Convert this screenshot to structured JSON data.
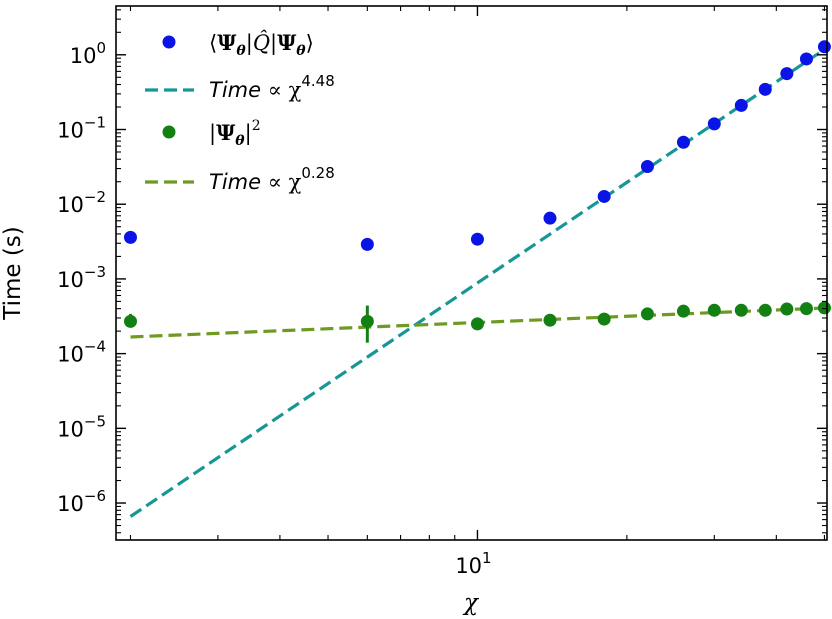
{
  "chart_data": {
    "type": "scatter",
    "xlabel": "χ",
    "ylabel": "Time (s)",
    "xscale": "log",
    "yscale": "log",
    "xlim": [
      1.87,
      50.6
    ],
    "ylim": [
      3.2e-07,
      4.5
    ],
    "x_ticks": [
      {
        "value": 10,
        "label": "10",
        "exp": "1"
      }
    ],
    "y_ticks": [
      {
        "value": 1e-06,
        "label": "10",
        "exp": "−6"
      },
      {
        "value": 1e-05,
        "label": "10",
        "exp": "−5"
      },
      {
        "value": 0.0001,
        "label": "10",
        "exp": "−4"
      },
      {
        "value": 0.001,
        "label": "10",
        "exp": "−3"
      },
      {
        "value": 0.01,
        "label": "10",
        "exp": "−2"
      },
      {
        "value": 0.1,
        "label": "10",
        "exp": "−1"
      },
      {
        "value": 1,
        "label": "10",
        "exp": "0"
      }
    ],
    "grid": false,
    "legend_position": "top-left",
    "series": [
      {
        "name": "⟨Ψθ|Q̂|Ψθ⟩",
        "kind": "points",
        "color": "#0a14e6",
        "x": [
          2,
          6,
          10,
          14,
          18,
          22,
          26,
          30,
          34,
          38,
          42,
          46,
          50
        ],
        "y": [
          0.0036,
          0.0029,
          0.0034,
          0.0065,
          0.0127,
          0.032,
          0.0675,
          0.119,
          0.21,
          0.345,
          0.56,
          0.88,
          1.28
        ],
        "yerr_low": [
          0,
          0,
          0,
          0,
          0,
          0,
          0,
          0,
          0,
          0,
          0,
          0,
          0
        ],
        "yerr_high": [
          0,
          0,
          0,
          0,
          0,
          0,
          0,
          0,
          0,
          0,
          0,
          0,
          0
        ]
      },
      {
        "name": "Time ∝ χ^4.48",
        "kind": "dashed-line",
        "color": "#169696",
        "x": [
          2,
          50
        ],
        "y": [
          6.6e-07,
          1.18
        ]
      },
      {
        "name": "|Ψθ|²",
        "kind": "points",
        "color": "#138013",
        "x": [
          2,
          6,
          10,
          14,
          18,
          22,
          26,
          30,
          34,
          38,
          42,
          46,
          50
        ],
        "y": [
          0.00027,
          0.00027,
          0.00025,
          0.00028,
          0.00029,
          0.00034,
          0.00037,
          0.00038,
          0.00038,
          0.00038,
          0.000395,
          0.0004,
          0.00041
        ],
        "yerr_low": [
          4e-05,
          0.00013,
          0,
          0,
          0,
          0,
          0,
          0,
          0,
          0,
          0,
          0,
          0
        ],
        "yerr_high": [
          7e-05,
          0.00017,
          0,
          0,
          0,
          0,
          0,
          0,
          0,
          0,
          0,
          0,
          0
        ]
      },
      {
        "name": "Time ∝ χ^0.28",
        "kind": "dashed-line",
        "color": "#6f9a22",
        "x": [
          2,
          50
        ],
        "y": [
          0.000167,
          0.000408
        ]
      }
    ],
    "legend": [
      {
        "series": 0,
        "marker": "dot",
        "math": "Q"
      },
      {
        "series": 1,
        "marker": "dash",
        "prefix": "Time",
        "sym": " ∝ χ",
        "exp": "4.48"
      },
      {
        "series": 2,
        "marker": "dot",
        "math": "abs"
      },
      {
        "series": 3,
        "marker": "dash",
        "prefix": "Time",
        "sym": " ∝ χ",
        "exp": "0.28"
      }
    ]
  }
}
